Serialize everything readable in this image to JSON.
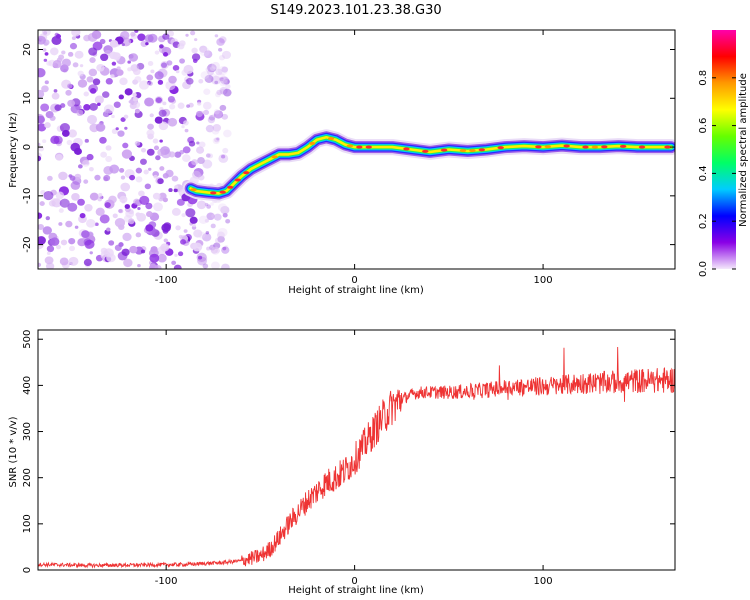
{
  "figure_title": "S149.2023.101.23.38.G30",
  "chart_data": [
    {
      "type": "heatmap",
      "title": "",
      "xlabel": "Height of straight line (km)",
      "ylabel": "Frequency (Hz)",
      "xlim": [
        -168,
        170
      ],
      "ylim": [
        -25,
        24
      ],
      "xticks": [
        -100,
        0,
        100
      ],
      "yticks": [
        -20,
        -10,
        0,
        10,
        20
      ],
      "grid": false,
      "colorbar": {
        "label": "Normalized spectral amplitude",
        "range": [
          0,
          1
        ],
        "ticks": [
          0.0,
          0.2,
          0.4,
          0.6,
          0.8
        ],
        "colormap": [
          "#f4e8fb",
          "#8a00e6",
          "#0000ff",
          "#00ccff",
          "#00ff66",
          "#66ff00",
          "#ffff00",
          "#ff9900",
          "#ff0000",
          "#ff00aa"
        ]
      },
      "noise_region_x": [
        -168,
        -67
      ],
      "signal_track": {
        "x": [
          -87,
          -84,
          -78,
          -72,
          -68,
          -64,
          -60,
          -55,
          -50,
          -45,
          -40,
          -35,
          -30,
          -25,
          -20,
          -15,
          -10,
          -5,
          0,
          10,
          20,
          30,
          40,
          50,
          60,
          70,
          80,
          90,
          100,
          110,
          120,
          130,
          140,
          150,
          160,
          168
        ],
        "y": [
          -8.5,
          -9,
          -9.3,
          -9.5,
          -9,
          -7.5,
          -6,
          -4.5,
          -3.5,
          -2.5,
          -1.5,
          -1.5,
          -1.2,
          0,
          1.5,
          2,
          1.5,
          0.5,
          0,
          0,
          0,
          -0.5,
          -1,
          -0.5,
          -0.8,
          -0.5,
          0,
          0.2,
          0,
          0.3,
          0,
          0,
          0.2,
          0,
          0,
          0
        ]
      }
    },
    {
      "type": "line",
      "title": "",
      "xlabel": "Height of straight line (km)",
      "ylabel": "SNR (10 * v/v)",
      "xlim": [
        -168,
        170
      ],
      "ylim": [
        0,
        520
      ],
      "xticks": [
        -100,
        0,
        100
      ],
      "yticks": [
        0,
        100,
        200,
        300,
        400,
        500
      ],
      "grid": false,
      "series": [
        {
          "color": "#ee3333",
          "x": [
            -168,
            -140,
            -110,
            -90,
            -80,
            -70,
            -60,
            -55,
            -50,
            -45,
            -40,
            -35,
            -30,
            -25,
            -20,
            -15,
            -10,
            -5,
            0,
            5,
            10,
            15,
            20,
            25,
            30,
            35,
            40,
            50,
            60,
            70,
            80,
            90,
            100,
            110,
            120,
            130,
            140,
            150,
            160,
            170
          ],
          "y": [
            12,
            10,
            11,
            12,
            14,
            16,
            20,
            25,
            30,
            45,
            70,
            100,
            125,
            150,
            170,
            190,
            200,
            215,
            240,
            270,
            300,
            330,
            355,
            370,
            380,
            385,
            385,
            385,
            387,
            390,
            395,
            397,
            398,
            400,
            405,
            405,
            408,
            410,
            410,
            412
          ]
        }
      ]
    }
  ]
}
